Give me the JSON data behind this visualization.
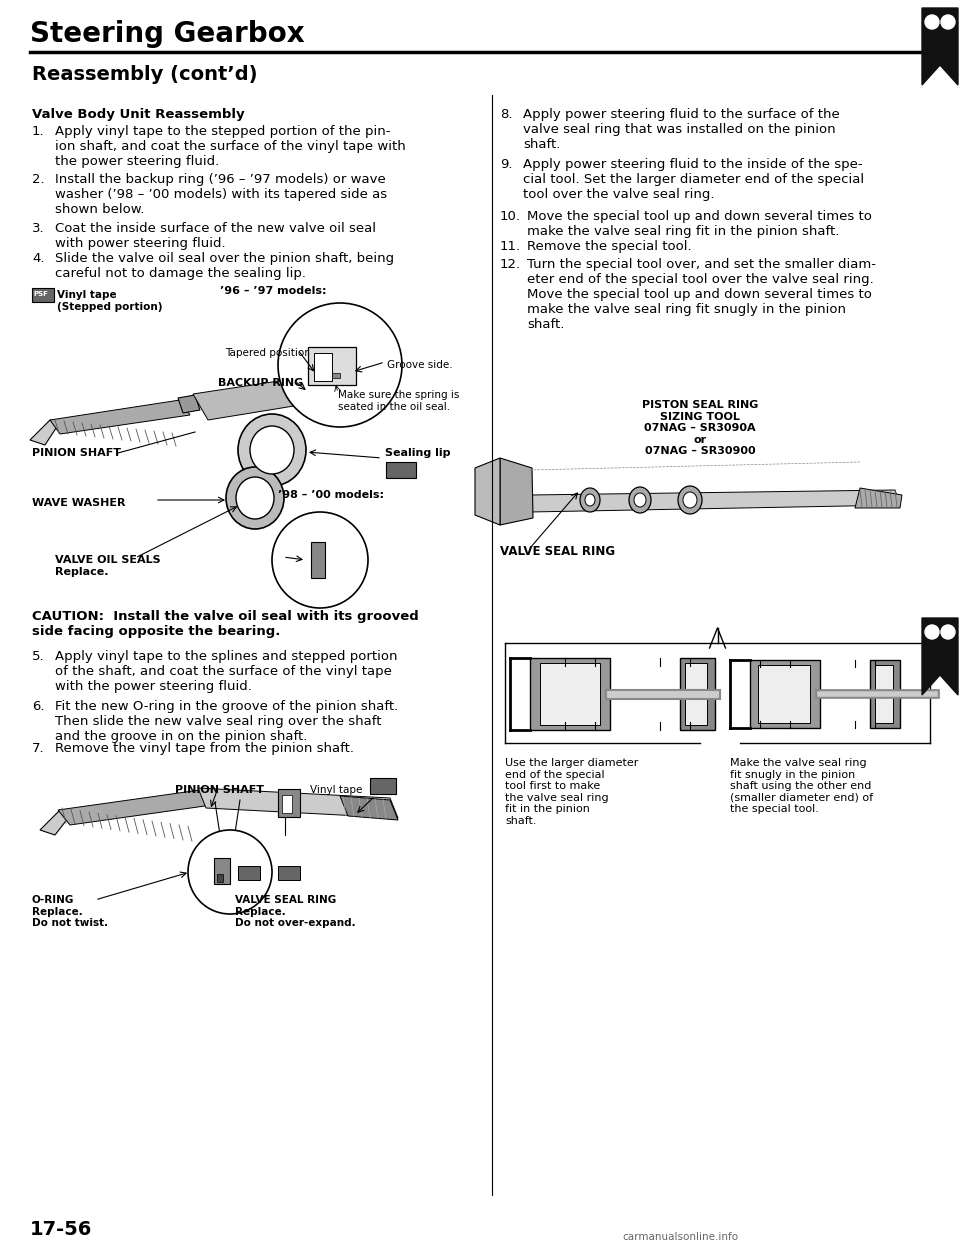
{
  "page_title": "Steering Gearbox",
  "section_title": "Reassembly (cont’d)",
  "subsection_title": "Valve Body Unit Reassembly",
  "bg_color": "#ffffff",
  "text_color": "#000000",
  "page_number": "17-56",
  "step1": "Apply vinyl tape to the stepped portion of the pin-\nion shaft, and coat the surface of the vinyl tape with\nthe power steering fluid.",
  "step2": "Install the backup ring (’96 – ’97 models) or wave\nwasher (’98 – ’00 models) with its tapered side as\nshown below.",
  "step3": "Coat the inside surface of the new valve oil seal\nwith power steering fluid.",
  "step4": "Slide the valve oil seal over the pinion shaft, being\ncareful not to damage the sealing lip.",
  "step5": "Apply vinyl tape to the splines and stepped portion\nof the shaft, and coat the surface of the vinyl tape\nwith the power steering fluid.",
  "step6": "Fit the new O-ring in the groove of the pinion shaft.\nThen slide the new valve seal ring over the shaft\nand the groove in on the pinion shaft.",
  "step7": "Remove the vinyl tape from the pinion shaft.",
  "step8": "Apply power steering fluid to the surface of the\nvalve seal ring that was installed on the pinion\nshaft.",
  "step9": "Apply power steering fluid to the inside of the spe-\ncial tool. Set the larger diameter end of the special\ntool over the valve seal ring.",
  "step10": "Move the special tool up and down several times to\nmake the valve seal ring fit in the pinion shaft.",
  "step11": "Remove the special tool.",
  "step12": "Turn the special tool over, and set the smaller diam-\neter end of the special tool over the valve seal ring.\nMove the special tool up and down several times to\nmake the valve seal ring fit snugly in the pinion\nshaft.",
  "caution_text": "CAUTION:  Install the valve oil seal with its grooved\nside facing opposite the bearing.",
  "piston_seal_label": "PISTON SEAL RING\nSIZING TOOL\n07NAG – SR3090A\nor\n07NAG – SR30900",
  "valve_seal_ring_label": "VALVE SEAL RING",
  "caption_left": "Use the larger diameter\nend of the special\ntool first to make\nthe valve seal ring\nfit in the pinion\nshaft.",
  "caption_right": "Make the valve seal ring\nfit snugly in the pinion\nshaft using the other end\n(smaller diameter end) of\nthe special tool.",
  "lbl_vinyl_tape": "Vinyl tape\n(Stepped portion)",
  "lbl_96_97": "’96 – ’97 models:",
  "lbl_tapered": "Tapered position.",
  "lbl_backup_ring": "BACKUP RING",
  "lbl_groove": "Groove side.",
  "lbl_spring": "Make sure the spring is\nseated in the oil seal.",
  "lbl_pinion_shaft": "PINION SHAFT",
  "lbl_sealing_lip": "Sealing lip",
  "lbl_wave_washer": "WAVE WASHER",
  "lbl_98_00": "’98 – ’00 models:",
  "lbl_valve_oil_seals": "VALVE OIL SEALS\nReplace.",
  "lbl_pinion_shaft2": "PINION SHAFT",
  "lbl_vinyl_tape2": "Vinyl tape",
  "lbl_o_ring": "O-RING\nReplace.\nDo not twist.",
  "lbl_valve_seal_ring2": "VALVE SEAL RING\nReplace.\nDo not over-expand.",
  "website": "carmanualsonline.info"
}
